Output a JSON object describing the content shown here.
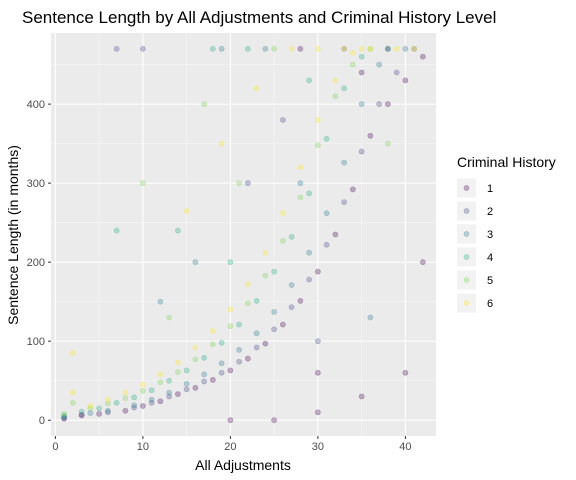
{
  "chart_data": {
    "type": "scatter",
    "title": "Sentence Length by All Adjustments and Criminal History Level",
    "xlabel": "All Adjustments",
    "ylabel": "Sentence Length (in months)",
    "xlim": [
      -0.5,
      43.5
    ],
    "ylim": [
      -20,
      490
    ],
    "x_ticks": [
      0,
      10,
      20,
      30,
      40
    ],
    "y_ticks": [
      0,
      100,
      200,
      300,
      400
    ],
    "grid": true,
    "point_alpha": 0.3,
    "legend": {
      "title": "Criminal History",
      "position": "right",
      "entries": [
        {
          "label": "1",
          "color": "#440154"
        },
        {
          "label": "2",
          "color": "#414487"
        },
        {
          "label": "3",
          "color": "#2a788e"
        },
        {
          "label": "4",
          "color": "#22a884"
        },
        {
          "label": "5",
          "color": "#7ad151"
        },
        {
          "label": "6",
          "color": "#fde725"
        }
      ]
    },
    "series": [
      {
        "name": "1",
        "points": [
          [
            1,
            2
          ],
          [
            3,
            6
          ],
          [
            5,
            8
          ],
          [
            8,
            12
          ],
          [
            10,
            18
          ],
          [
            12,
            24
          ],
          [
            14,
            33
          ],
          [
            16,
            41
          ],
          [
            18,
            51
          ],
          [
            20,
            63
          ],
          [
            22,
            78
          ],
          [
            24,
            97
          ],
          [
            26,
            121
          ],
          [
            28,
            151
          ],
          [
            30,
            188
          ],
          [
            32,
            235
          ],
          [
            34,
            292
          ],
          [
            36,
            360
          ],
          [
            38,
            400
          ],
          [
            40,
            430
          ],
          [
            42,
            460
          ],
          [
            25,
            0
          ],
          [
            30,
            10
          ],
          [
            35,
            30
          ],
          [
            40,
            60
          ],
          [
            20,
            0
          ],
          [
            42,
            200
          ],
          [
            35,
            440
          ],
          [
            28,
            470
          ],
          [
            38,
            470
          ],
          [
            30,
            60
          ]
        ]
      },
      {
        "name": "2",
        "points": [
          [
            1,
            3
          ],
          [
            3,
            7
          ],
          [
            6,
            10
          ],
          [
            9,
            16
          ],
          [
            11,
            22
          ],
          [
            13,
            30
          ],
          [
            15,
            39
          ],
          [
            17,
            49
          ],
          [
            19,
            60
          ],
          [
            21,
            74
          ],
          [
            23,
            92
          ],
          [
            25,
            115
          ],
          [
            27,
            143
          ],
          [
            29,
            178
          ],
          [
            31,
            222
          ],
          [
            33,
            276
          ],
          [
            35,
            340
          ],
          [
            37,
            400
          ],
          [
            39,
            440
          ],
          [
            41,
            470
          ],
          [
            7,
            470
          ],
          [
            10,
            470
          ],
          [
            22,
            300
          ],
          [
            26,
            380
          ],
          [
            30,
            100
          ],
          [
            33,
            470
          ]
        ]
      },
      {
        "name": "3",
        "points": [
          [
            1,
            4
          ],
          [
            4,
            9
          ],
          [
            6,
            12
          ],
          [
            9,
            19
          ],
          [
            11,
            26
          ],
          [
            13,
            35
          ],
          [
            15,
            46
          ],
          [
            17,
            58
          ],
          [
            19,
            72
          ],
          [
            21,
            89
          ],
          [
            23,
            110
          ],
          [
            25,
            137
          ],
          [
            27,
            171
          ],
          [
            29,
            212
          ],
          [
            31,
            262
          ],
          [
            33,
            326
          ],
          [
            35,
            400
          ],
          [
            37,
            450
          ],
          [
            40,
            470
          ],
          [
            19,
            470
          ],
          [
            24,
            470
          ],
          [
            12,
            150
          ],
          [
            16,
            200
          ],
          [
            28,
            300
          ],
          [
            36,
            130
          ]
        ]
      },
      {
        "name": "4",
        "points": [
          [
            1,
            6
          ],
          [
            3,
            11
          ],
          [
            5,
            15
          ],
          [
            7,
            22
          ],
          [
            9,
            29
          ],
          [
            11,
            38
          ],
          [
            13,
            50
          ],
          [
            15,
            63
          ],
          [
            17,
            79
          ],
          [
            19,
            98
          ],
          [
            21,
            121
          ],
          [
            23,
            151
          ],
          [
            25,
            188
          ],
          [
            27,
            232
          ],
          [
            29,
            287
          ],
          [
            31,
            356
          ],
          [
            33,
            420
          ],
          [
            35,
            460
          ],
          [
            38,
            470
          ],
          [
            7,
            240
          ],
          [
            14,
            240
          ],
          [
            18,
            470
          ],
          [
            22,
            470
          ],
          [
            29,
            430
          ],
          [
            20,
            200
          ]
        ]
      },
      {
        "name": "5",
        "points": [
          [
            1,
            8
          ],
          [
            2,
            22
          ],
          [
            4,
            15
          ],
          [
            6,
            21
          ],
          [
            8,
            28
          ],
          [
            10,
            37
          ],
          [
            12,
            48
          ],
          [
            14,
            61
          ],
          [
            16,
            77
          ],
          [
            18,
            96
          ],
          [
            20,
            119
          ],
          [
            22,
            148
          ],
          [
            24,
            183
          ],
          [
            26,
            227
          ],
          [
            28,
            282
          ],
          [
            30,
            348
          ],
          [
            32,
            410
          ],
          [
            34,
            450
          ],
          [
            36,
            470
          ],
          [
            10,
            300
          ],
          [
            17,
            400
          ],
          [
            25,
            470
          ],
          [
            13,
            130
          ],
          [
            21,
            300
          ],
          [
            38,
            350
          ]
        ]
      },
      {
        "name": "6",
        "points": [
          [
            2,
            35
          ],
          [
            2,
            85
          ],
          [
            4,
            18
          ],
          [
            6,
            26
          ],
          [
            8,
            35
          ],
          [
            10,
            45
          ],
          [
            12,
            58
          ],
          [
            14,
            73
          ],
          [
            16,
            92
          ],
          [
            18,
            113
          ],
          [
            20,
            140
          ],
          [
            22,
            172
          ],
          [
            24,
            212
          ],
          [
            26,
            262
          ],
          [
            28,
            320
          ],
          [
            30,
            380
          ],
          [
            32,
            430
          ],
          [
            34,
            465
          ],
          [
            36,
            470
          ],
          [
            15,
            265
          ],
          [
            19,
            350
          ],
          [
            23,
            420
          ],
          [
            27,
            470
          ],
          [
            30,
            470
          ],
          [
            33,
            470
          ],
          [
            35,
            470
          ],
          [
            39,
            470
          ],
          [
            41,
            470
          ]
        ]
      }
    ]
  }
}
